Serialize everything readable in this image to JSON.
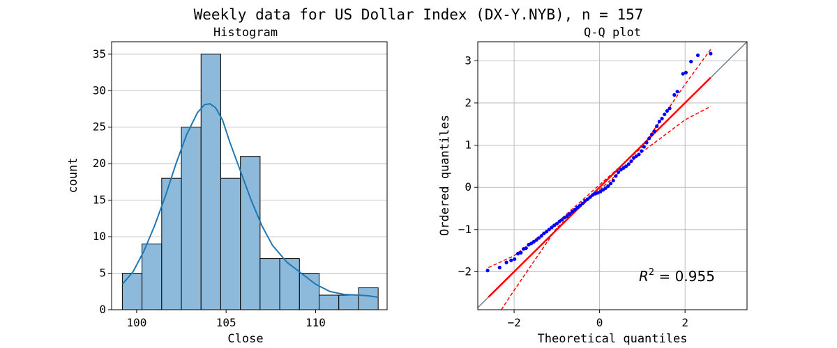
{
  "figure": {
    "suptitle": "Weekly data for US Dollar Index (DX-Y.NYB), n = 157"
  },
  "chart_data": [
    {
      "type": "bar",
      "title": "Histogram",
      "xlabel": "Close",
      "ylabel": "count",
      "bin_edges": [
        99.2,
        100.3,
        101.4,
        102.5,
        103.6,
        104.7,
        105.8,
        106.9,
        108.0,
        109.1,
        110.2,
        111.3,
        112.4,
        113.5
      ],
      "values": [
        5,
        9,
        18,
        25,
        35,
        18,
        21,
        7,
        7,
        5,
        2,
        2,
        3
      ],
      "xlim": [
        98.6,
        114.0
      ],
      "ylim": [
        0,
        36.7
      ],
      "xticks": [
        100,
        105,
        110
      ],
      "yticks": [
        0,
        5,
        10,
        15,
        20,
        25,
        30,
        35
      ],
      "grid": "y",
      "bar_color": "#8dbadb",
      "edge_color": "#000000",
      "kde": {
        "x": [
          99.2,
          99.8,
          100.4,
          101.0,
          101.6,
          102.2,
          102.8,
          103.4,
          103.8,
          104.1,
          104.4,
          104.8,
          105.2,
          105.8,
          106.4,
          107.0,
          107.6,
          108.4,
          109.2,
          110.0,
          110.8,
          111.6,
          112.4,
          113.0,
          113.5
        ],
        "y": [
          3.5,
          5.2,
          8.0,
          11.5,
          15.5,
          20.0,
          24.0,
          27.0,
          28.1,
          28.2,
          27.7,
          26.0,
          23.0,
          19.0,
          15.0,
          11.5,
          8.8,
          6.5,
          5.0,
          3.5,
          2.5,
          2.1,
          2.0,
          1.9,
          1.7
        ],
        "color": "#1f77b4"
      }
    },
    {
      "type": "scatter",
      "title": "Q-Q plot",
      "xlabel": "Theoretical quantiles",
      "ylabel": "Ordered quantiles",
      "xlim": [
        -2.85,
        3.45
      ],
      "ylim": [
        -2.9,
        3.45
      ],
      "xticks": [
        -2,
        0,
        2
      ],
      "yticks": [
        -2,
        -1,
        0,
        1,
        2,
        3
      ],
      "grid": "both",
      "points_color": "#0000ff",
      "points": [
        [
          -2.62,
          -1.97
        ],
        [
          -2.34,
          -1.9
        ],
        [
          -2.18,
          -1.78
        ],
        [
          -2.07,
          -1.73
        ],
        [
          -1.99,
          -1.7
        ],
        [
          -1.91,
          -1.57
        ],
        [
          -1.84,
          -1.55
        ],
        [
          -1.78,
          -1.46
        ],
        [
          -1.72,
          -1.44
        ],
        [
          -1.66,
          -1.36
        ],
        [
          -1.6,
          -1.33
        ],
        [
          -1.54,
          -1.29
        ],
        [
          -1.48,
          -1.25
        ],
        [
          -1.42,
          -1.2
        ],
        [
          -1.36,
          -1.15
        ],
        [
          -1.3,
          -1.09
        ],
        [
          -1.24,
          -1.05
        ],
        [
          -1.18,
          -1.0
        ],
        [
          -1.12,
          -0.95
        ],
        [
          -1.06,
          -0.9
        ],
        [
          -1.0,
          -0.86
        ],
        [
          -0.94,
          -0.81
        ],
        [
          -0.88,
          -0.77
        ],
        [
          -0.82,
          -0.72
        ],
        [
          -0.76,
          -0.68
        ],
        [
          -0.7,
          -0.63
        ],
        [
          -0.64,
          -0.58
        ],
        [
          -0.58,
          -0.53
        ],
        [
          -0.52,
          -0.48
        ],
        [
          -0.46,
          -0.43
        ],
        [
          -0.4,
          -0.38
        ],
        [
          -0.34,
          -0.32
        ],
        [
          -0.28,
          -0.28
        ],
        [
          -0.22,
          -0.23
        ],
        [
          -0.16,
          -0.18
        ],
        [
          -0.1,
          -0.15
        ],
        [
          -0.04,
          -0.13
        ],
        [
          0.02,
          -0.1
        ],
        [
          0.08,
          -0.06
        ],
        [
          0.14,
          -0.02
        ],
        [
          0.2,
          0.03
        ],
        [
          0.26,
          0.09
        ],
        [
          0.32,
          0.16
        ],
        [
          0.38,
          0.27
        ],
        [
          0.44,
          0.36
        ],
        [
          0.5,
          0.42
        ],
        [
          0.56,
          0.46
        ],
        [
          0.62,
          0.5
        ],
        [
          0.68,
          0.55
        ],
        [
          0.74,
          0.62
        ],
        [
          0.8,
          0.7
        ],
        [
          0.86,
          0.74
        ],
        [
          0.92,
          0.78
        ],
        [
          0.98,
          0.86
        ],
        [
          1.04,
          0.96
        ],
        [
          1.1,
          1.06
        ],
        [
          1.16,
          1.16
        ],
        [
          1.22,
          1.25
        ],
        [
          1.28,
          1.33
        ],
        [
          1.34,
          1.45
        ],
        [
          1.4,
          1.56
        ],
        [
          1.46,
          1.63
        ],
        [
          1.52,
          1.73
        ],
        [
          1.58,
          1.81
        ],
        [
          1.64,
          1.87
        ],
        [
          1.75,
          2.19
        ],
        [
          1.82,
          2.27
        ],
        [
          1.95,
          2.69
        ],
        [
          2.02,
          2.72
        ],
        [
          2.14,
          2.98
        ],
        [
          2.3,
          3.13
        ],
        [
          2.6,
          3.17
        ]
      ],
      "fit_line": {
        "x": [
          -2.6,
          2.6
        ],
        "y": [
          -2.6,
          2.6
        ],
        "color": "#ff0000"
      },
      "conf_upper": {
        "x": [
          -2.6,
          -2.0,
          -1.0,
          0.0,
          1.0,
          2.0,
          2.6
        ],
        "y": [
          -1.9,
          -1.62,
          -0.84,
          0.06,
          0.96,
          2.44,
          3.27
        ],
        "color": "#ff0000"
      },
      "conf_lower": {
        "x": [
          -2.3,
          -2.0,
          -1.0,
          0.0,
          1.0,
          2.0,
          2.6
        ],
        "y": [
          -2.9,
          -2.44,
          -0.96,
          -0.06,
          0.84,
          1.6,
          1.92
        ],
        "color": "#ff0000"
      },
      "reference_line": {
        "x": [
          -2.85,
          3.45
        ],
        "y": [
          -2.85,
          3.45
        ],
        "color": "#708090"
      },
      "annotation": "R^2 = 0.955",
      "annotation_base": "R",
      "annotation_exp": "2",
      "annotation_rest": " = 0.955"
    }
  ]
}
